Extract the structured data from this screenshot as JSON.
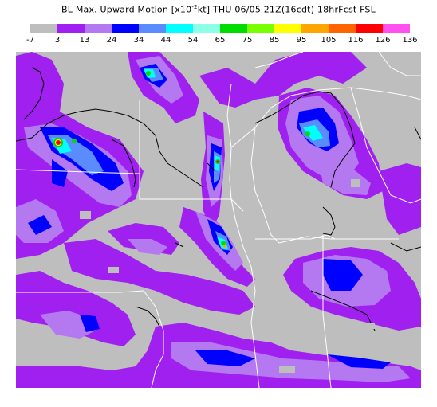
{
  "header": {
    "title_left": "BL Max. Upward Motion [x10",
    "title_exp": "-2",
    "title_right": "kt]  THU 06/05 21Z(16cdt) 18hrFcst FSL"
  },
  "legend": {
    "labels": [
      "-7",
      "3",
      "13",
      "24",
      "34",
      "44",
      "54",
      "65",
      "75",
      "85",
      "95",
      "105",
      "116",
      "126",
      "136"
    ],
    "colors": [
      "#bebebe",
      "#a020f0",
      "#b478f0",
      "#0000ff",
      "#5a8cff",
      "#00ffff",
      "#8cffe6",
      "#00dc00",
      "#78ff00",
      "#ffff00",
      "#ffa500",
      "#ff6400",
      "#ff0000",
      "#ff50f0"
    ]
  },
  "map": {
    "background": "#bebebe",
    "boundary_color": "#ffffff",
    "contour_color": "#000000"
  }
}
